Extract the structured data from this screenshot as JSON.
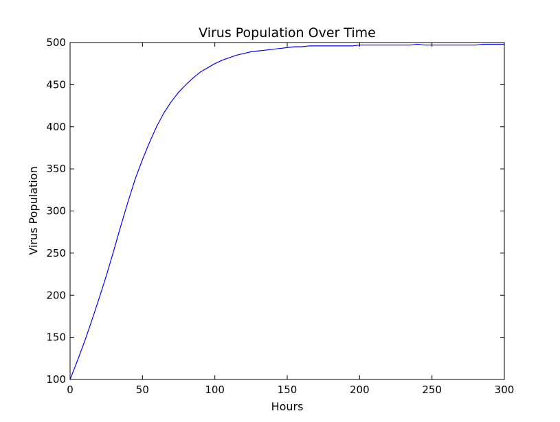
{
  "chart_data": {
    "type": "line",
    "title": "Virus Population Over Time",
    "xlabel": "Hours",
    "ylabel": "Virus Population",
    "xlim": [
      0,
      300
    ],
    "ylim": [
      100,
      500
    ],
    "x_ticks": [
      0,
      50,
      100,
      150,
      200,
      250,
      300
    ],
    "y_ticks": [
      100,
      150,
      200,
      250,
      300,
      350,
      400,
      450,
      500
    ],
    "grid": false,
    "legend": "none",
    "series": [
      {
        "color": "#0000ff",
        "x": [
          0,
          5,
          10,
          15,
          20,
          25,
          30,
          35,
          40,
          45,
          50,
          55,
          60,
          65,
          70,
          75,
          80,
          85,
          90,
          95,
          100,
          105,
          110,
          115,
          120,
          125,
          130,
          135,
          140,
          145,
          150,
          155,
          160,
          165,
          170,
          175,
          180,
          185,
          190,
          195,
          200,
          205,
          210,
          215,
          220,
          225,
          230,
          235,
          240,
          245,
          250,
          255,
          260,
          265,
          270,
          275,
          280,
          285,
          290,
          295,
          300
        ],
        "y": [
          100,
          122,
          145,
          170,
          196,
          223,
          252,
          282,
          311,
          338,
          361,
          382,
          401,
          417,
          430,
          441,
          450,
          458,
          465,
          470,
          475,
          479,
          482,
          485,
          487,
          489,
          490,
          491,
          492,
          493,
          494,
          495,
          495,
          496,
          496,
          496,
          496,
          496,
          496,
          496,
          497,
          497,
          497,
          497,
          497,
          497,
          497,
          497,
          498,
          497,
          497,
          497,
          497,
          497,
          497,
          497,
          497,
          498,
          498,
          498,
          498
        ]
      }
    ]
  }
}
